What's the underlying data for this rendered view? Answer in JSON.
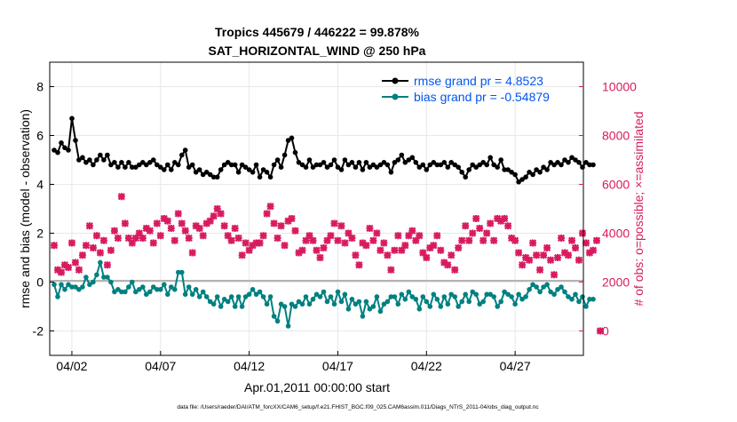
{
  "title_line1": "Tropics 445679 / 446222 = 99.878%",
  "title_line2": "SAT_HORIZONTAL_WIND @ 250 hPa",
  "left_axis_label": "rmse and bias (model - observation)",
  "right_axis_label": "# of obs: o=possible; ×=assimilated",
  "x_axis_label": "Apr.01,2011 00:00:00 start",
  "footer": "data file: /Users/raeder/DAI/ATM_forcXX/CAM6_setup/f.e21.FHIST_BGC.f09_025.CAM6assim.011/Diags_NTrS_2011-04/obs_diag_output.nc",
  "legend": [
    {
      "label": "rmse grand pr = 4.8523",
      "color": "#000000"
    },
    {
      "label": "bias grand pr = -0.54879",
      "color": "#007f7f"
    }
  ],
  "colors": {
    "rmse": "#000000",
    "bias": "#008080",
    "obs": "#d81b60",
    "zero_line": "#b3b3b3",
    "grid": "#e8e8e8",
    "legend_text": "#0055ee"
  },
  "chart_data": {
    "type": "line",
    "x_start": "2011-04-01",
    "x_ticks": [
      "04/02",
      "04/07",
      "04/12",
      "04/17",
      "04/22",
      "04/27"
    ],
    "y_left_ticks": [
      "-2",
      "0",
      "2",
      "4",
      "6",
      "8"
    ],
    "y_left_lim": [
      -3,
      9
    ],
    "y_right_ticks": [
      "0",
      "2000",
      "4000",
      "6000",
      "8000",
      "10000"
    ],
    "y_right_lim": [
      -1000,
      11000
    ],
    "series": [
      {
        "name": "rmse grand pr = 4.8523",
        "axis": "left",
        "marker": "circle",
        "values": [
          5.4,
          5.3,
          5.7,
          5.5,
          5.4,
          6.7,
          5.8,
          5.0,
          5.1,
          4.9,
          5.0,
          4.8,
          5.0,
          5.2,
          5.0,
          5.2,
          4.8,
          4.9,
          4.7,
          4.9,
          4.7,
          4.9,
          4.7,
          4.7,
          4.8,
          4.9,
          4.8,
          4.9,
          5.0,
          4.8,
          4.7,
          4.6,
          4.8,
          4.6,
          4.9,
          4.8,
          5.2,
          5.4,
          4.7,
          4.8,
          4.5,
          4.6,
          4.4,
          4.5,
          4.4,
          4.3,
          4.3,
          4.6,
          4.8,
          4.9,
          4.8,
          4.8,
          4.5,
          4.8,
          4.7,
          4.6,
          4.5,
          4.8,
          4.3,
          4.6,
          4.5,
          4.3,
          4.8,
          5.0,
          4.7,
          5.2,
          5.8,
          5.9,
          5.3,
          4.9,
          4.8,
          4.7,
          5.0,
          4.7,
          4.8,
          4.8,
          4.9,
          4.7,
          4.8,
          5.0,
          4.7,
          4.6,
          5.0,
          4.8,
          4.9,
          4.7,
          4.9,
          4.6,
          4.9,
          4.7,
          4.8,
          4.7,
          4.8,
          4.9,
          4.8,
          4.5,
          4.9,
          5.0,
          5.2,
          4.9,
          5.0,
          5.1,
          4.9,
          4.7,
          4.8,
          4.6,
          4.8,
          4.9,
          4.8,
          4.8,
          4.9,
          4.7,
          4.9,
          4.8,
          4.7,
          4.5,
          4.3,
          4.6,
          4.8,
          4.7,
          4.8,
          4.9,
          4.8,
          5.1,
          4.8,
          4.7,
          5.0,
          4.6,
          4.6,
          4.5,
          4.4,
          4.1,
          4.2,
          4.3,
          4.5,
          4.4,
          4.6,
          4.5,
          4.7,
          4.6,
          4.9,
          4.8,
          4.9,
          4.8,
          5.0,
          4.9,
          5.1,
          5.0,
          4.9,
          4.7,
          4.9,
          4.8,
          4.8
        ]
      },
      {
        "name": "bias grand pr = -0.54879",
        "axis": "left",
        "marker": "circle",
        "values": [
          -0.1,
          -0.6,
          -0.1,
          -0.3,
          -0.1,
          -0.2,
          -0.2,
          -0.3,
          -0.2,
          0.2,
          -0.1,
          0.0,
          0.3,
          0.8,
          0.2,
          0.2,
          0.0,
          -0.4,
          -0.3,
          -0.4,
          -0.4,
          -0.2,
          0.0,
          -0.4,
          -0.3,
          -0.2,
          -0.5,
          -0.4,
          -0.2,
          -0.3,
          -0.3,
          -0.1,
          -0.5,
          -0.2,
          -0.3,
          0.4,
          0.4,
          -0.5,
          -0.2,
          -0.5,
          -0.3,
          -0.6,
          -0.4,
          -0.6,
          -0.8,
          -0.9,
          -0.6,
          -1.0,
          -0.7,
          -0.8,
          -0.6,
          -1.0,
          -0.6,
          -1.0,
          -0.6,
          -0.5,
          -0.3,
          -0.5,
          -0.4,
          -0.6,
          -0.9,
          -0.6,
          -1.4,
          -1.6,
          -0.9,
          -1.0,
          -1.8,
          -0.9,
          -1.0,
          -0.8,
          -0.9,
          -0.6,
          -0.9,
          -0.7,
          -0.5,
          -0.6,
          -0.4,
          -0.8,
          -0.6,
          -0.9,
          -0.4,
          -0.8,
          -0.5,
          -1.1,
          -0.7,
          -0.9,
          -0.8,
          -1.4,
          -0.8,
          -1.1,
          -1.0,
          -0.6,
          -1.2,
          -0.9,
          -0.8,
          -0.6,
          -0.6,
          -0.9,
          -0.5,
          -0.7,
          -0.4,
          -0.6,
          -0.7,
          -1.1,
          -0.6,
          -0.8,
          -1.0,
          -0.5,
          -0.7,
          -1.0,
          -0.6,
          -0.9,
          -0.5,
          -0.6,
          -1.0,
          -0.8,
          -0.5,
          -0.8,
          -0.4,
          -0.5,
          -0.9,
          -0.8,
          -0.5,
          -0.5,
          -0.6,
          -1.0,
          -0.8,
          -0.4,
          -0.5,
          -0.6,
          -0.9,
          -0.5,
          -0.7,
          -0.6,
          -0.3,
          -0.1,
          -0.2,
          -0.4,
          -0.2,
          -0.1,
          -0.4,
          -0.5,
          -0.3,
          -0.2,
          -0.4,
          -0.6,
          -0.7,
          -0.5,
          -0.8,
          -0.6,
          -1.0,
          -0.7,
          -0.7
        ]
      },
      {
        "name": "",
        "axis": "right",
        "marker": "x",
        "values": [
          3500,
          2500,
          2400,
          2700,
          2600,
          3600,
          2800,
          2500,
          3100,
          3500,
          4300,
          3400,
          3900,
          3200,
          3700,
          2700,
          3300,
          4100,
          3800,
          5500,
          4400,
          3800,
          3600,
          3800,
          4000,
          3800,
          4200,
          4100,
          3600,
          4400,
          3900,
          4600,
          4500,
          4200,
          3700,
          4800,
          4400,
          4100,
          3800,
          3200,
          4300,
          4200,
          3900,
          4400,
          4500,
          4700,
          5000,
          4800,
          4300,
          3900,
          3700,
          4200,
          3800,
          3100,
          3600,
          3300,
          3500,
          3600,
          3600,
          3900,
          4800,
          5100,
          4400,
          3800,
          4300,
          3500,
          4500,
          4600,
          4100,
          3200,
          3300,
          3700,
          3900,
          3700,
          3300,
          3000,
          3400,
          3700,
          3900,
          4400,
          3700,
          4300,
          3600,
          4000,
          3800,
          3100,
          2700,
          3600,
          3500,
          4200,
          3700,
          4000,
          3300,
          3600,
          3100,
          2500,
          3300,
          3900,
          3300,
          3500,
          3900,
          4100,
          3700,
          3900,
          3200,
          3000,
          3400,
          3500,
          3900,
          3300,
          2800,
          2700,
          3100,
          2500,
          3400,
          3700,
          4300,
          3700,
          4000,
          4600,
          4200,
          3700,
          4000,
          4400,
          3700,
          4600,
          4500,
          4600,
          4300,
          3800,
          3700,
          3200,
          2700,
          3000,
          2900,
          3600,
          3100,
          2500,
          3100,
          3400,
          2900,
          2300,
          3000,
          3800,
          3200,
          3100,
          3700,
          3400,
          2900,
          4000,
          3600,
          3200,
          3300,
          3700,
          0
        ]
      }
    ]
  }
}
